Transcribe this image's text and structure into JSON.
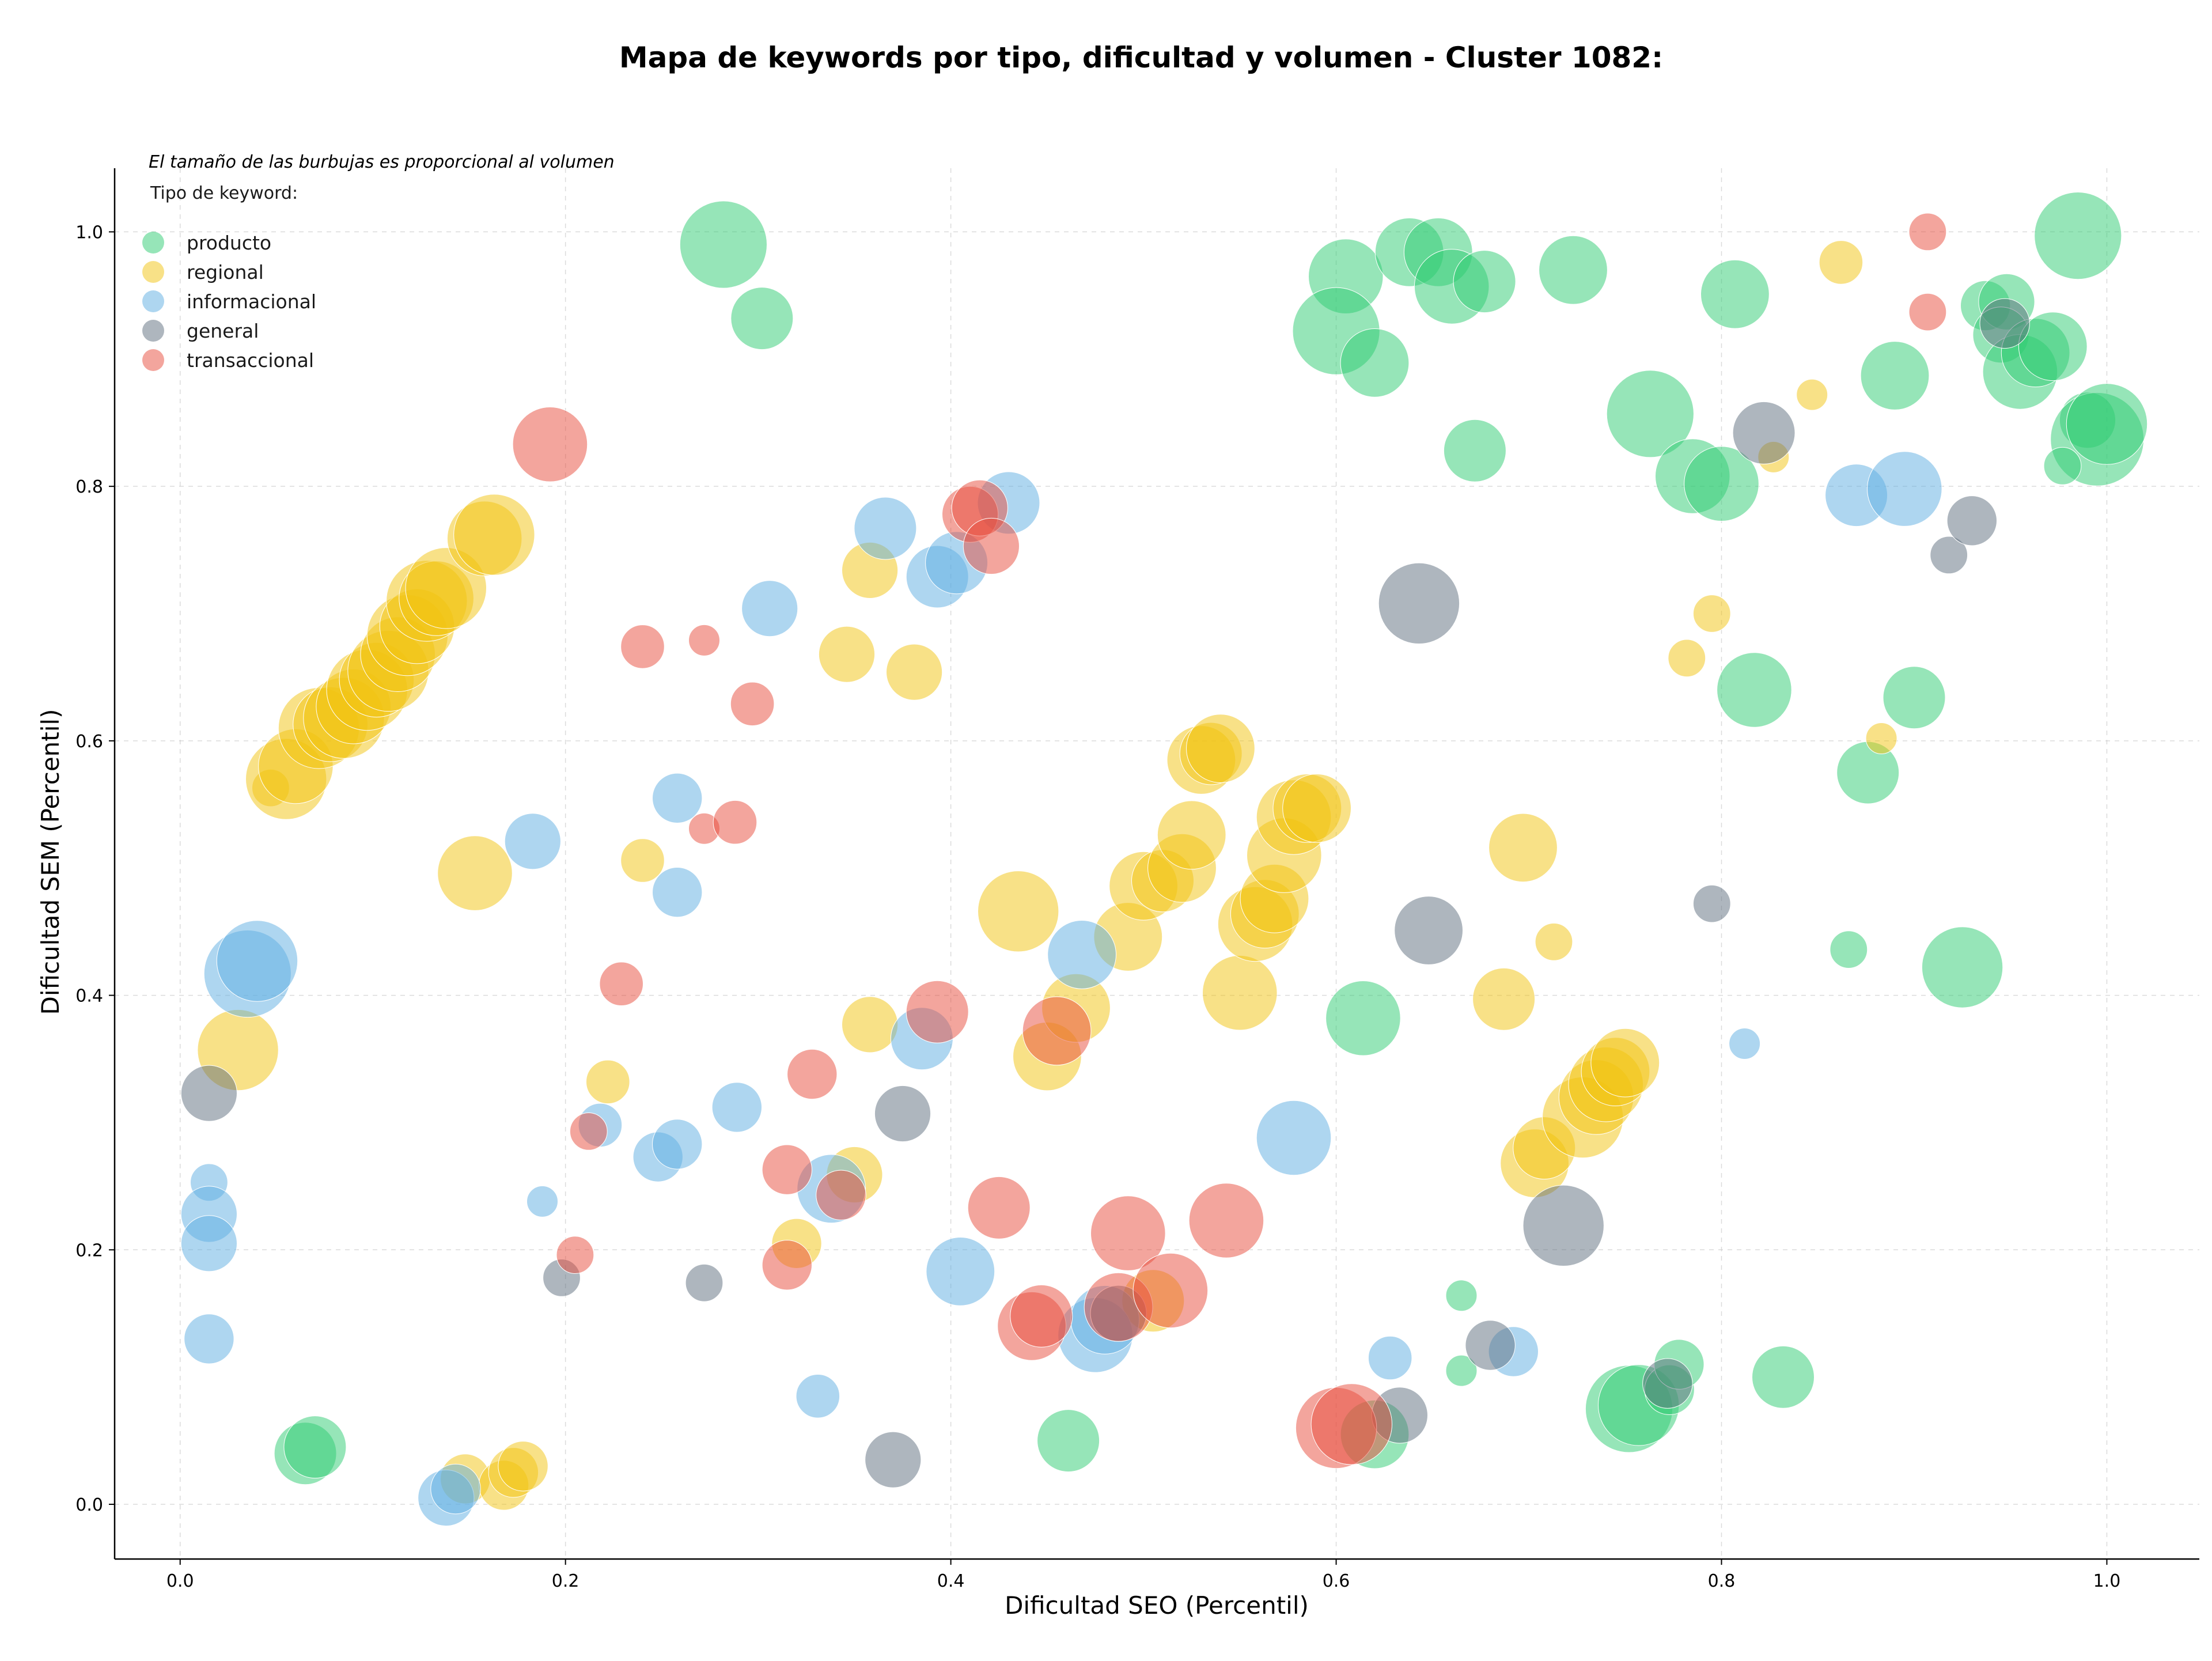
{
  "chart_data": {
    "type": "scatter",
    "title": "Mapa de keywords por tipo, dificultad y volumen - Cluster 1082:",
    "xlabel": "Dificultad SEO (Percentil)",
    "ylabel": "Dificultad SEM (Percentil)",
    "note": "El tamaño de las burbujas es proporcional al volumen",
    "legend_title": "Tipo de keyword:",
    "legend_position": "top-left",
    "xlim": [
      -0.034,
      1.048
    ],
    "ylim": [
      -0.043,
      1.05
    ],
    "xticks": [
      "0.0",
      "0.2",
      "0.4",
      "0.6",
      "0.8",
      "1.0"
    ],
    "yticks": [
      "0.0",
      "0.2",
      "0.4",
      "0.6",
      "0.8",
      "1.0"
    ],
    "grid": true,
    "series": [
      {
        "name": "producto",
        "color": "#2ecc71",
        "points": [
          [
            0.282,
            0.99,
            1.4
          ],
          [
            0.302,
            0.932,
            1.0
          ],
          [
            0.605,
            0.965,
            1.2
          ],
          [
            0.638,
            0.984,
            1.1
          ],
          [
            0.653,
            0.984,
            1.1
          ],
          [
            0.66,
            0.957,
            1.2
          ],
          [
            0.677,
            0.961,
            1.0
          ],
          [
            0.723,
            0.97,
            1.1
          ],
          [
            0.6,
            0.922,
            1.4
          ],
          [
            0.62,
            0.897,
            1.1
          ],
          [
            0.807,
            0.951,
            1.1
          ],
          [
            0.985,
            0.997,
            1.4
          ],
          [
            0.937,
            0.942,
            0.8
          ],
          [
            0.948,
            0.945,
            0.9
          ],
          [
            0.945,
            0.919,
            0.9
          ],
          [
            0.955,
            0.89,
            1.2
          ],
          [
            0.963,
            0.905,
            1.1
          ],
          [
            0.972,
            0.91,
            1.1
          ],
          [
            0.89,
            0.887,
            1.1
          ],
          [
            0.763,
            0.857,
            1.4
          ],
          [
            0.785,
            0.808,
            1.2
          ],
          [
            0.8,
            0.802,
            1.2
          ],
          [
            0.672,
            0.828,
            1.0
          ],
          [
            0.99,
            0.852,
            0.9
          ],
          [
            0.995,
            0.837,
            1.5
          ],
          [
            1.0,
            0.849,
            1.3
          ],
          [
            0.977,
            0.816,
            0.6
          ],
          [
            0.817,
            0.64,
            1.2
          ],
          [
            0.9,
            0.634,
            1.0
          ],
          [
            0.876,
            0.575,
            1.0
          ],
          [
            0.925,
            0.422,
            1.3
          ],
          [
            0.614,
            0.382,
            1.2
          ],
          [
            0.866,
            0.436,
            0.6
          ],
          [
            0.665,
            0.164,
            0.5
          ],
          [
            0.665,
            0.105,
            0.5
          ],
          [
            0.065,
            0.04,
            1.0
          ],
          [
            0.07,
            0.045,
            1.0
          ],
          [
            0.461,
            0.05,
            1.0
          ],
          [
            0.62,
            0.055,
            1.1
          ],
          [
            0.752,
            0.075,
            1.4
          ],
          [
            0.757,
            0.078,
            1.3
          ],
          [
            0.773,
            0.09,
            0.8
          ],
          [
            0.778,
            0.11,
            0.8
          ],
          [
            0.832,
            0.1,
            1.0
          ]
        ]
      },
      {
        "name": "regional",
        "color": "#f1c40f",
        "points": [
          [
            0.047,
            0.563,
            0.6
          ],
          [
            0.055,
            0.57,
            1.3
          ],
          [
            0.06,
            0.58,
            1.2
          ],
          [
            0.072,
            0.61,
            1.3
          ],
          [
            0.078,
            0.613,
            1.2
          ],
          [
            0.085,
            0.618,
            1.3
          ],
          [
            0.09,
            0.627,
            1.2
          ],
          [
            0.097,
            0.64,
            1.3
          ],
          [
            0.102,
            0.648,
            1.2
          ],
          [
            0.108,
            0.655,
            1.3
          ],
          [
            0.113,
            0.668,
            1.2
          ],
          [
            0.118,
            0.683,
            1.3
          ],
          [
            0.123,
            0.69,
            1.2
          ],
          [
            0.128,
            0.71,
            1.3
          ],
          [
            0.133,
            0.712,
            1.2
          ],
          [
            0.138,
            0.72,
            1.3
          ],
          [
            0.158,
            0.759,
            1.2
          ],
          [
            0.163,
            0.762,
            1.3
          ],
          [
            0.153,
            0.496,
            1.2
          ],
          [
            0.03,
            0.357,
            1.3
          ],
          [
            0.358,
            0.734,
            0.9
          ],
          [
            0.346,
            0.668,
            0.9
          ],
          [
            0.381,
            0.654,
            0.9
          ],
          [
            0.24,
            0.506,
            0.7
          ],
          [
            0.435,
            0.466,
            1.3
          ],
          [
            0.492,
            0.446,
            1.1
          ],
          [
            0.5,
            0.486,
            1.1
          ],
          [
            0.51,
            0.49,
            1.0
          ],
          [
            0.52,
            0.5,
            1.1
          ],
          [
            0.525,
            0.526,
            1.1
          ],
          [
            0.53,
            0.585,
            1.1
          ],
          [
            0.535,
            0.59,
            1.0
          ],
          [
            0.54,
            0.594,
            1.1
          ],
          [
            0.55,
            0.402,
            1.2
          ],
          [
            0.558,
            0.456,
            1.2
          ],
          [
            0.563,
            0.464,
            1.1
          ],
          [
            0.568,
            0.476,
            1.1
          ],
          [
            0.573,
            0.51,
            1.2
          ],
          [
            0.578,
            0.54,
            1.2
          ],
          [
            0.585,
            0.547,
            1.1
          ],
          [
            0.59,
            0.547,
            1.1
          ],
          [
            0.358,
            0.377,
            0.9
          ],
          [
            0.222,
            0.332,
            0.7
          ],
          [
            0.35,
            0.259,
            0.9
          ],
          [
            0.32,
            0.205,
            0.8
          ],
          [
            0.148,
            0.02,
            0.8
          ],
          [
            0.168,
            0.015,
            0.8
          ],
          [
            0.173,
            0.025,
            0.8
          ],
          [
            0.178,
            0.03,
            0.8
          ],
          [
            0.45,
            0.352,
            1.1
          ],
          [
            0.465,
            0.39,
            1.1
          ],
          [
            0.505,
            0.16,
            1.0
          ],
          [
            0.697,
            0.516,
            1.1
          ],
          [
            0.687,
            0.397,
            1.0
          ],
          [
            0.713,
            0.442,
            0.6
          ],
          [
            0.703,
            0.268,
            1.1
          ],
          [
            0.708,
            0.28,
            1.0
          ],
          [
            0.728,
            0.304,
            1.3
          ],
          [
            0.735,
            0.32,
            1.2
          ],
          [
            0.74,
            0.33,
            1.2
          ],
          [
            0.745,
            0.34,
            1.1
          ],
          [
            0.75,
            0.347,
            1.1
          ],
          [
            0.782,
            0.665,
            0.6
          ],
          [
            0.795,
            0.7,
            0.6
          ],
          [
            0.827,
            0.823,
            0.5
          ],
          [
            0.847,
            0.872,
            0.5
          ],
          [
            0.862,
            0.976,
            0.7
          ],
          [
            0.883,
            0.602,
            0.5
          ]
        ]
      },
      {
        "name": "informacional",
        "color": "#5dade2",
        "points": [
          [
            0.035,
            0.417,
            1.4
          ],
          [
            0.04,
            0.427,
            1.3
          ],
          [
            0.015,
            0.253,
            0.6
          ],
          [
            0.015,
            0.228,
            0.9
          ],
          [
            0.015,
            0.205,
            0.9
          ],
          [
            0.015,
            0.13,
            0.8
          ],
          [
            0.183,
            0.521,
            0.9
          ],
          [
            0.188,
            0.238,
            0.5
          ],
          [
            0.258,
            0.555,
            0.8
          ],
          [
            0.258,
            0.481,
            0.8
          ],
          [
            0.218,
            0.298,
            0.7
          ],
          [
            0.248,
            0.273,
            0.8
          ],
          [
            0.258,
            0.283,
            0.8
          ],
          [
            0.289,
            0.312,
            0.8
          ],
          [
            0.306,
            0.704,
            0.9
          ],
          [
            0.366,
            0.767,
            1.0
          ],
          [
            0.393,
            0.729,
            1.0
          ],
          [
            0.403,
            0.74,
            1.0
          ],
          [
            0.43,
            0.787,
            1.0
          ],
          [
            0.385,
            0.366,
            1.0
          ],
          [
            0.338,
            0.248,
            1.1
          ],
          [
            0.405,
            0.183,
            1.1
          ],
          [
            0.468,
            0.432,
            1.1
          ],
          [
            0.331,
            0.085,
            0.7
          ],
          [
            0.138,
            0.005,
            0.9
          ],
          [
            0.143,
            0.012,
            0.8
          ],
          [
            0.475,
            0.133,
            1.2
          ],
          [
            0.48,
            0.145,
            1.1
          ],
          [
            0.578,
            0.288,
            1.2
          ],
          [
            0.628,
            0.115,
            0.7
          ],
          [
            0.692,
            0.12,
            0.8
          ],
          [
            0.812,
            0.362,
            0.5
          ],
          [
            0.87,
            0.793,
            1.0
          ],
          [
            0.895,
            0.798,
            1.2
          ]
        ]
      },
      {
        "name": "general",
        "color": "#5d6d7e",
        "points": [
          [
            0.015,
            0.323,
            0.9
          ],
          [
            0.198,
            0.178,
            0.6
          ],
          [
            0.272,
            0.174,
            0.6
          ],
          [
            0.375,
            0.307,
            0.9
          ],
          [
            0.37,
            0.035,
            0.9
          ],
          [
            0.487,
            0.15,
            0.9
          ],
          [
            0.643,
            0.708,
            1.3
          ],
          [
            0.648,
            0.451,
            1.1
          ],
          [
            0.633,
            0.07,
            0.9
          ],
          [
            0.718,
            0.219,
            1.3
          ],
          [
            0.68,
            0.125,
            0.8
          ],
          [
            0.772,
            0.095,
            0.8
          ],
          [
            0.795,
            0.472,
            0.6
          ],
          [
            0.822,
            0.842,
            1.0
          ],
          [
            0.918,
            0.746,
            0.6
          ],
          [
            0.93,
            0.773,
            0.8
          ],
          [
            0.947,
            0.928,
            0.8
          ]
        ]
      },
      {
        "name": "transaccional",
        "color": "#e74c3c",
        "points": [
          [
            0.192,
            0.833,
            1.2
          ],
          [
            0.24,
            0.674,
            0.7
          ],
          [
            0.272,
            0.679,
            0.5
          ],
          [
            0.297,
            0.629,
            0.7
          ],
          [
            0.272,
            0.531,
            0.5
          ],
          [
            0.288,
            0.536,
            0.7
          ],
          [
            0.229,
            0.409,
            0.7
          ],
          [
            0.212,
            0.293,
            0.6
          ],
          [
            0.205,
            0.196,
            0.6
          ],
          [
            0.315,
            0.263,
            0.8
          ],
          [
            0.315,
            0.188,
            0.8
          ],
          [
            0.328,
            0.338,
            0.8
          ],
          [
            0.343,
            0.243,
            0.8
          ],
          [
            0.393,
            0.387,
            1.0
          ],
          [
            0.41,
            0.778,
            0.9
          ],
          [
            0.415,
            0.783,
            0.9
          ],
          [
            0.421,
            0.753,
            0.9
          ],
          [
            0.425,
            0.233,
            1.0
          ],
          [
            0.442,
            0.14,
            1.1
          ],
          [
            0.447,
            0.148,
            1.0
          ],
          [
            0.455,
            0.372,
            1.1
          ],
          [
            0.492,
            0.213,
            1.2
          ],
          [
            0.487,
            0.155,
            1.1
          ],
          [
            0.514,
            0.168,
            1.2
          ],
          [
            0.543,
            0.223,
            1.2
          ],
          [
            0.6,
            0.06,
            1.3
          ],
          [
            0.608,
            0.063,
            1.3
          ],
          [
            0.907,
            1.0,
            0.6
          ],
          [
            0.907,
            0.937,
            0.6
          ]
        ]
      }
    ]
  }
}
